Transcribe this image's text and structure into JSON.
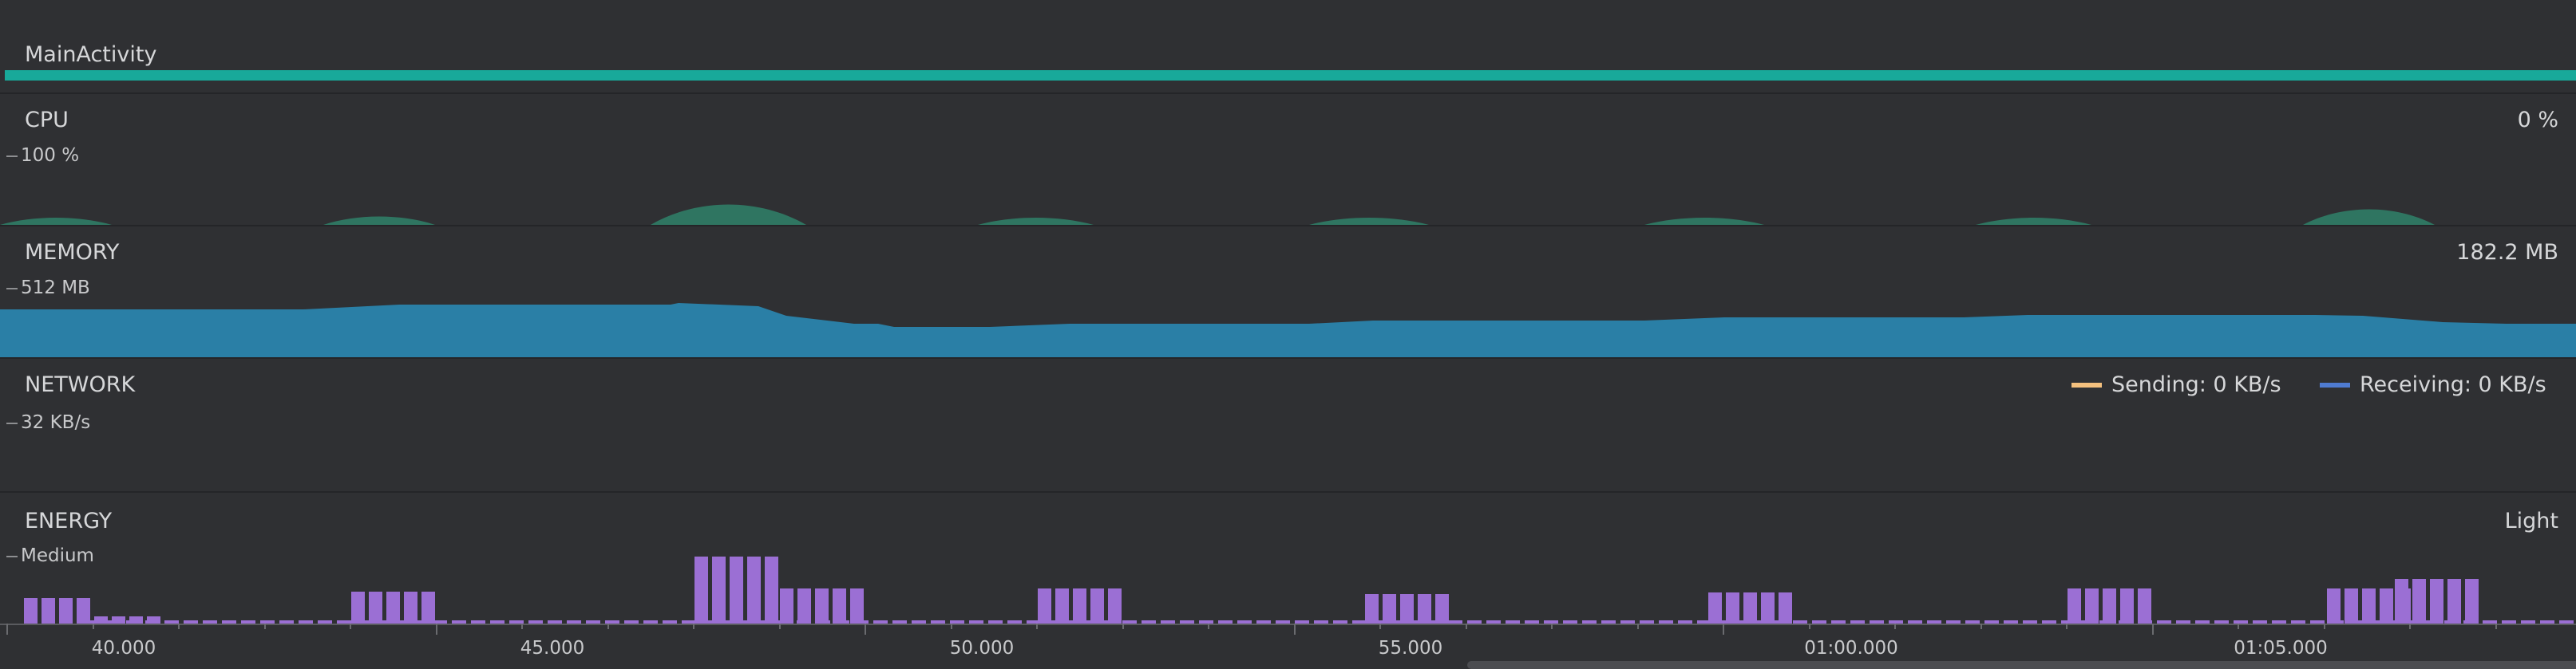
{
  "activity": {
    "label": "MainActivity"
  },
  "cpu": {
    "title": "CPU",
    "scale": "100 %",
    "current": "0 %",
    "color": "#2f7561"
  },
  "memory": {
    "title": "MEMORY",
    "scale": "512 MB",
    "current": "182.2 MB",
    "color": "#2a7fa6"
  },
  "network": {
    "title": "NETWORK",
    "scale": "32 KB/s",
    "sending_label": "Sending: 0 KB/s",
    "receiving_label": "Receiving: 0 KB/s",
    "sending_color": "#f4c07e",
    "receiving_color": "#4f7bd1"
  },
  "energy": {
    "title": "ENERGY",
    "scale": "Medium",
    "current": "Light",
    "color": "#9b6fd4"
  },
  "timeline": {
    "ticks": [
      "40.000",
      "45.000",
      "50.000",
      "55.000",
      "01:00.000",
      "01:05.000"
    ]
  },
  "colors": {
    "background": "#2f3033",
    "activity_bar": "#18a99a"
  }
}
